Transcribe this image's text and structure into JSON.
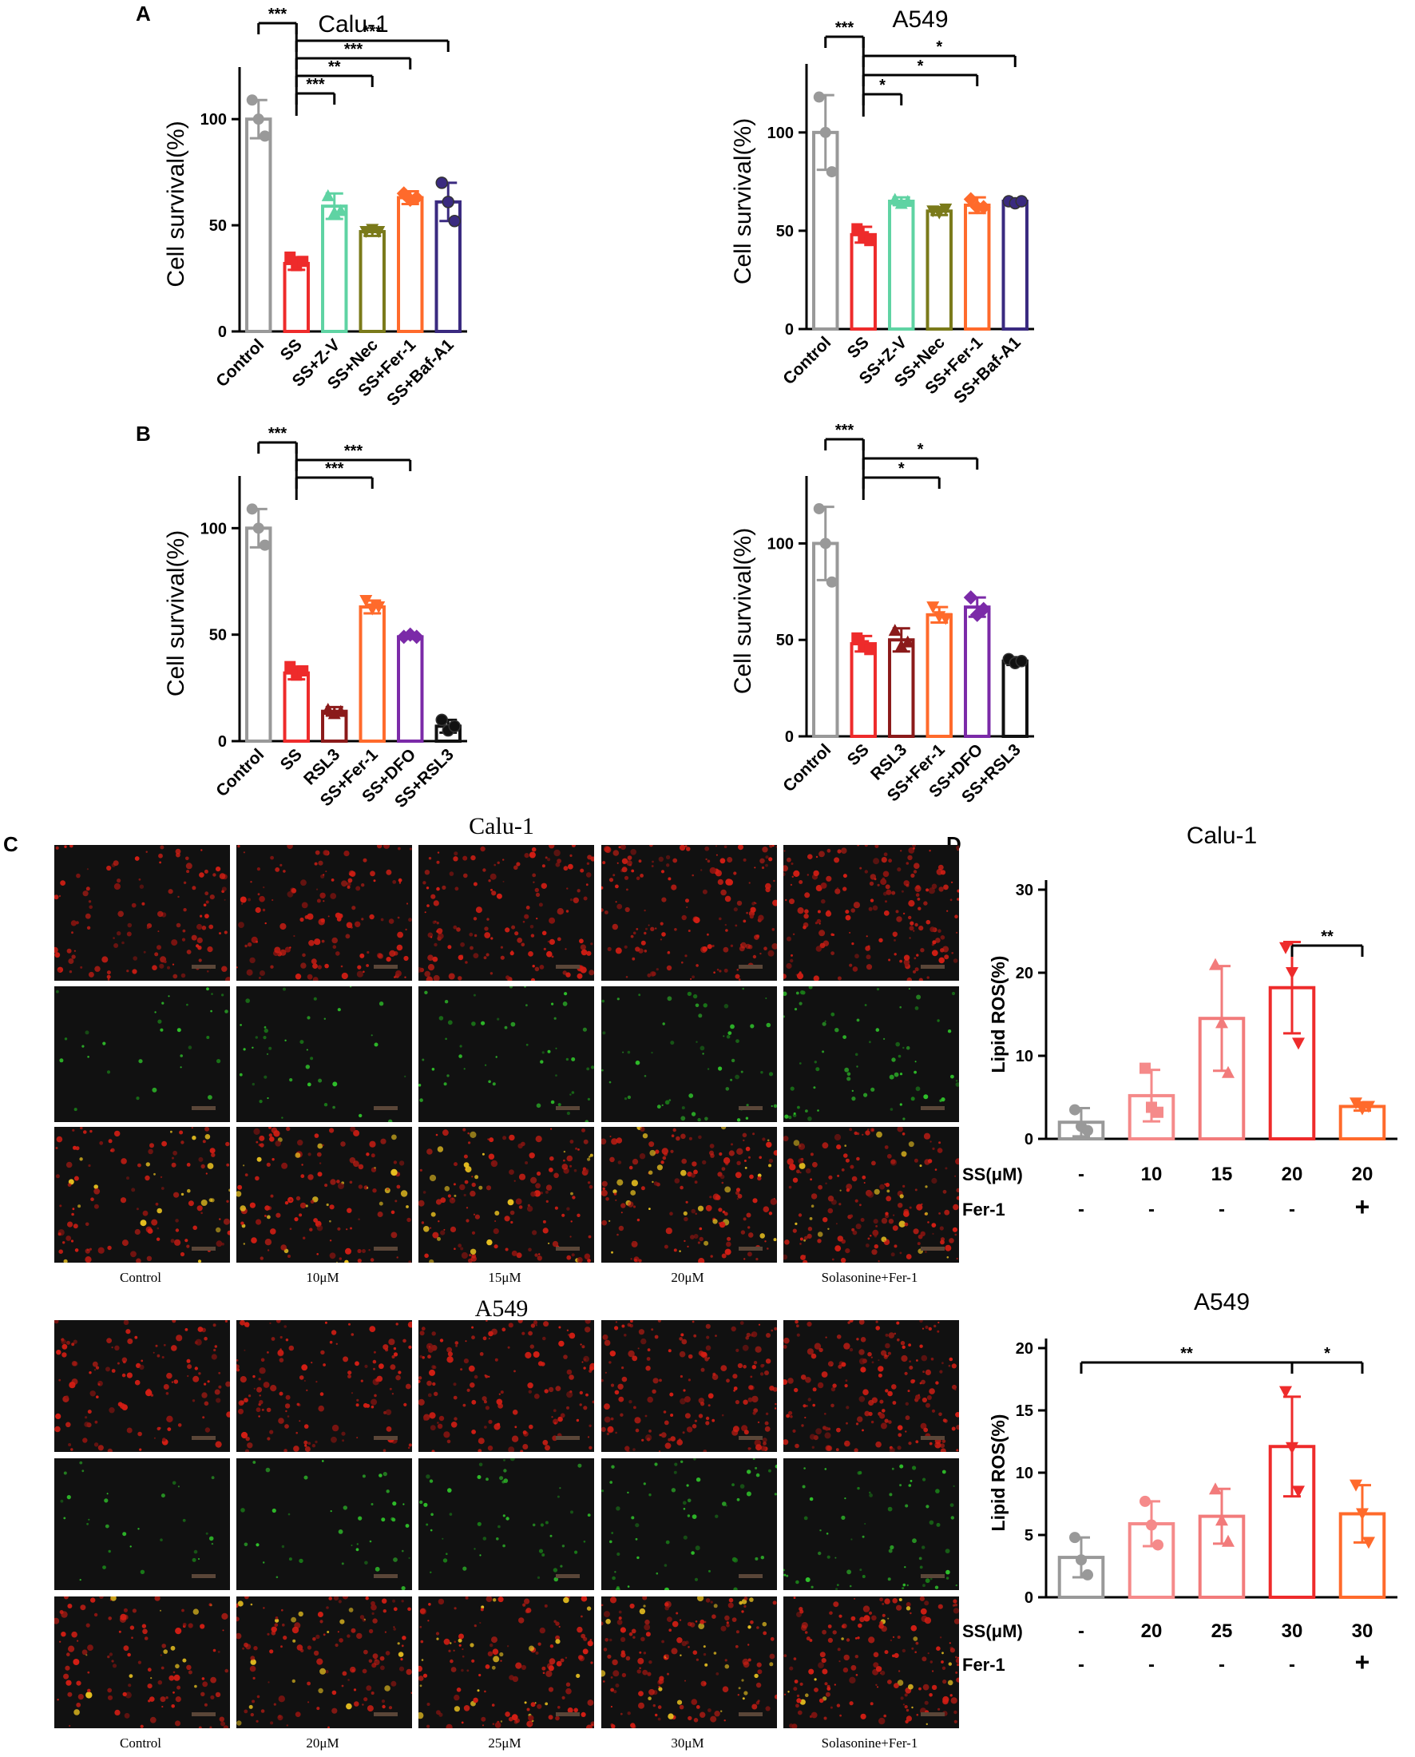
{
  "panel_labels": [
    "A",
    "B",
    "C",
    "D"
  ],
  "chart_data": [
    {
      "id": "A-calu1",
      "type": "bar",
      "title": "Calu-1",
      "ylabel": "Cell survival(%)",
      "ylim": [
        0,
        120
      ],
      "yticks": [
        0,
        50,
        100
      ],
      "categories": [
        "Control",
        "SS",
        "SS+Z-V",
        "SS+Nec",
        "SS+Fer-1",
        "SS+Baf-A1"
      ],
      "values": [
        100,
        32,
        59,
        47,
        63,
        61
      ],
      "errors": [
        9,
        3,
        6,
        2,
        3,
        9
      ],
      "colors": [
        "#999999",
        "#ee2b2b",
        "#5fd3a3",
        "#7a7a1a",
        "#ff6a2b",
        "#3a2a80"
      ],
      "markers": [
        "circle",
        "square",
        "triangle",
        "tri-down",
        "diamond",
        "hexagon"
      ],
      "points": [
        [
          109,
          100,
          92
        ],
        [
          35,
          31,
          33
        ],
        [
          64,
          56,
          57
        ],
        [
          47,
          48,
          47
        ],
        [
          65,
          62,
          63
        ],
        [
          70,
          61,
          52
        ]
      ],
      "significance": [
        {
          "from": 0,
          "to": 1,
          "label": "***"
        },
        {
          "from": 1,
          "to": 2,
          "label": "***"
        },
        {
          "from": 1,
          "to": 3,
          "label": "**"
        },
        {
          "from": 1,
          "to": 4,
          "label": "***"
        },
        {
          "from": 1,
          "to": 5,
          "label": "***"
        }
      ]
    },
    {
      "id": "A-a549",
      "type": "bar",
      "title": "A549",
      "ylabel": "Cell survival(%)",
      "ylim": [
        0,
        130
      ],
      "yticks": [
        0,
        50,
        100
      ],
      "categories": [
        "Control",
        "SS",
        "SS+Z-V",
        "SS+Nec",
        "SS+Fer-1",
        "SS+Baf-A1"
      ],
      "values": [
        100,
        48,
        65,
        60,
        63,
        65
      ],
      "errors": [
        19,
        4,
        2,
        2,
        4,
        1
      ],
      "colors": [
        "#999999",
        "#ee2b2b",
        "#5fd3a3",
        "#7a7a1a",
        "#ff6a2b",
        "#3a2a80"
      ],
      "markers": [
        "circle",
        "square",
        "triangle",
        "tri-down",
        "diamond",
        "hexagon"
      ],
      "points": [
        [
          118,
          100,
          80
        ],
        [
          51,
          47,
          45
        ],
        [
          66,
          64,
          65
        ],
        [
          60,
          59,
          61
        ],
        [
          66,
          62,
          62
        ],
        [
          65,
          64,
          65
        ]
      ],
      "significance": [
        {
          "from": 0,
          "to": 1,
          "label": "***"
        },
        {
          "from": 1,
          "to": 2,
          "label": "*"
        },
        {
          "from": 1,
          "to": 4,
          "label": "*"
        },
        {
          "from": 1,
          "to": 5,
          "label": "*"
        }
      ]
    },
    {
      "id": "B-calu1",
      "type": "bar",
      "title": "",
      "ylabel": "Cell survival(%)",
      "ylim": [
        0,
        120
      ],
      "yticks": [
        0,
        50,
        100
      ],
      "categories": [
        "Control",
        "SS",
        "RSL3",
        "SS+Fer-1",
        "SS+DFO",
        "SS+RSL3"
      ],
      "values": [
        100,
        32,
        14,
        63,
        49,
        7
      ],
      "errors": [
        9,
        3,
        2,
        3,
        1,
        3
      ],
      "colors": [
        "#999999",
        "#ee2b2b",
        "#8b1a1a",
        "#ff6a2b",
        "#7b2aa8",
        "#111111"
      ],
      "markers": [
        "circle",
        "square",
        "triangle",
        "tri-down",
        "diamond",
        "hexagon"
      ],
      "points": [
        [
          109,
          100,
          92
        ],
        [
          35,
          31,
          33
        ],
        [
          15,
          13,
          14
        ],
        [
          66,
          62,
          63
        ],
        [
          49,
          50,
          49
        ],
        [
          10,
          5,
          7
        ]
      ],
      "significance": [
        {
          "from": 0,
          "to": 1,
          "label": "***"
        },
        {
          "from": 1,
          "to": 3,
          "label": "***"
        },
        {
          "from": 1,
          "to": 4,
          "label": "***"
        }
      ]
    },
    {
      "id": "B-a549",
      "type": "bar",
      "title": "",
      "ylabel": "Cell survival(%)",
      "ylim": [
        0,
        130
      ],
      "yticks": [
        0,
        50,
        100
      ],
      "categories": [
        "Control",
        "SS",
        "RSL3",
        "SS+Fer-1",
        "SS+DFO",
        "SS+RSL3"
      ],
      "values": [
        100,
        48,
        50,
        63,
        67,
        39
      ],
      "errors": [
        19,
        4,
        6,
        4,
        5,
        2
      ],
      "colors": [
        "#999999",
        "#ee2b2b",
        "#8b1a1a",
        "#ff6a2b",
        "#7b2aa8",
        "#111111"
      ],
      "markers": [
        "circle",
        "square",
        "triangle",
        "tri-down",
        "diamond",
        "hexagon"
      ],
      "points": [
        [
          118,
          100,
          80
        ],
        [
          51,
          47,
          45
        ],
        [
          55,
          47,
          49
        ],
        [
          67,
          62,
          61
        ],
        [
          72,
          63,
          66
        ],
        [
          40,
          38,
          39
        ]
      ],
      "significance": [
        {
          "from": 0,
          "to": 1,
          "label": "***"
        },
        {
          "from": 1,
          "to": 3,
          "label": "*"
        },
        {
          "from": 1,
          "to": 4,
          "label": "*"
        }
      ]
    },
    {
      "id": "D-calu1",
      "type": "bar",
      "title": "Calu-1",
      "ylabel": "Lipid ROS(%)",
      "ylim": [
        0,
        30
      ],
      "yticks": [
        0,
        10,
        20,
        30
      ],
      "categories": [
        "1",
        "2",
        "3",
        "4",
        "5"
      ],
      "row_labels": [
        "SS(μM)",
        "Fer-1"
      ],
      "ss_row": [
        "-",
        "10",
        "15",
        "20",
        "20"
      ],
      "fer_row": [
        "-",
        "-",
        "-",
        "-",
        "+"
      ],
      "values": [
        2,
        5.2,
        14.5,
        18.2,
        3.9
      ],
      "errors": [
        1.7,
        3.1,
        6.3,
        5.5,
        0.5
      ],
      "colors": [
        "#999999",
        "#f58a8a",
        "#f27b7b",
        "#ee2b2b",
        "#ff6a2b"
      ],
      "markers": [
        "circle",
        "square",
        "triangle",
        "tri-down",
        "tri-down"
      ],
      "points": [
        [
          3.5,
          1.5,
          1.0
        ],
        [
          8.5,
          3.8,
          3.2
        ],
        [
          21,
          14,
          8
        ],
        [
          23,
          20,
          11.5
        ],
        [
          4.3,
          3.6,
          3.9
        ]
      ],
      "significance": [
        {
          "from": 0,
          "to": 1,
          "label": "*"
        },
        {
          "from": 0,
          "to": 2,
          "label": "**"
        },
        {
          "from": 0,
          "to": 3,
          "label": "***"
        },
        {
          "from": 3,
          "to": 4,
          "label": "**"
        }
      ]
    },
    {
      "id": "D-a549",
      "type": "bar",
      "title": "A549",
      "ylabel": "Lipid ROS(%)",
      "ylim": [
        0,
        20
      ],
      "yticks": [
        0,
        5,
        10,
        15,
        20
      ],
      "categories": [
        "1",
        "2",
        "3",
        "4",
        "5"
      ],
      "row_labels": [
        "SS(μM)",
        "Fer-1"
      ],
      "ss_row": [
        "-",
        "20",
        "25",
        "30",
        "30"
      ],
      "fer_row": [
        "-",
        "-",
        "-",
        "-",
        "+"
      ],
      "values": [
        3.2,
        5.9,
        6.5,
        12.1,
        6.7
      ],
      "errors": [
        1.6,
        1.8,
        2.2,
        4.0,
        2.3
      ],
      "colors": [
        "#999999",
        "#f58a8a",
        "#f27b7b",
        "#ee2b2b",
        "#ff6a2b"
      ],
      "markers": [
        "circle",
        "circle",
        "triangle",
        "tri-down",
        "tri-down"
      ],
      "points": [
        [
          4.8,
          3.0,
          1.8
        ],
        [
          7.7,
          5.8,
          4.2
        ],
        [
          8.7,
          6.2,
          4.5
        ],
        [
          16.5,
          12,
          8.5
        ],
        [
          9.0,
          6.7,
          4.4
        ]
      ],
      "significance": [
        {
          "from": 0,
          "to": 3,
          "label": "**"
        },
        {
          "from": 3,
          "to": 4,
          "label": "*"
        }
      ]
    }
  ],
  "panel_c": {
    "top": {
      "title": "Calu-1",
      "labels": [
        "Control",
        "10μM",
        "15μM",
        "20μM",
        "Solasonine+Fer-1"
      ]
    },
    "bottom": {
      "title": "A549",
      "labels": [
        "Control",
        "20μM",
        "25μM",
        "30μM",
        "Solasonine+Fer-1"
      ]
    }
  }
}
